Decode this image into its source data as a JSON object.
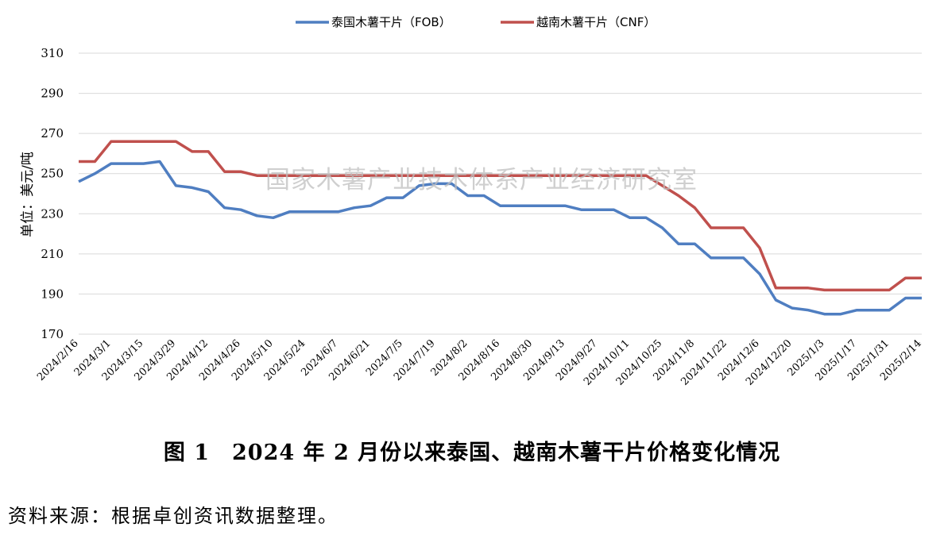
{
  "chart_data": {
    "type": "line",
    "ylabel": "单位：美元/吨",
    "ylim": [
      170,
      310
    ],
    "yticks": [
      170,
      190,
      210,
      230,
      250,
      270,
      290,
      310
    ],
    "x": [
      "2024/2/16",
      "2024/2/23",
      "2024/3/1",
      "2024/3/8",
      "2024/3/15",
      "2024/3/22",
      "2024/3/29",
      "2024/4/5",
      "2024/4/12",
      "2024/4/19",
      "2024/4/26",
      "2024/5/3",
      "2024/5/10",
      "2024/5/17",
      "2024/5/24",
      "2024/5/31",
      "2024/6/7",
      "2024/6/14",
      "2024/6/21",
      "2024/6/28",
      "2024/7/5",
      "2024/7/12",
      "2024/7/19",
      "2024/7/26",
      "2024/8/2",
      "2024/8/9",
      "2024/8/16",
      "2024/8/23",
      "2024/8/30",
      "2024/9/6",
      "2024/9/13",
      "2024/9/20",
      "2024/9/27",
      "2024/10/4",
      "2024/10/11",
      "2024/10/18",
      "2024/10/25",
      "2024/11/1",
      "2024/11/8",
      "2024/11/15",
      "2024/11/22",
      "2024/11/29",
      "2024/12/6",
      "2024/12/13",
      "2024/12/20",
      "2024/12/27",
      "2025/1/3",
      "2025/1/10",
      "2025/1/17",
      "2025/1/24",
      "2025/1/31",
      "2025/2/7",
      "2025/2/14"
    ],
    "xtick_labels": [
      "2024/2/16",
      "2024/3/1",
      "2024/3/15",
      "2024/3/29",
      "2024/4/12",
      "2024/4/26",
      "2024/5/10",
      "2024/5/24",
      "2024/6/7",
      "2024/6/21",
      "2024/7/5",
      "2024/7/19",
      "2024/8/2",
      "2024/8/16",
      "2024/8/30",
      "2024/9/13",
      "2024/9/27",
      "2024/10/11",
      "2024/10/25",
      "2024/11/8",
      "2024/11/22",
      "2024/12/6",
      "2024/12/20",
      "2025/1/3",
      "2025/1/17",
      "2025/1/31",
      "2025/2/14"
    ],
    "series": [
      {
        "name": "泰国木薯干片（FOB）",
        "color": "#4f7ec1",
        "values": [
          246,
          250,
          255,
          255,
          255,
          256,
          244,
          243,
          241,
          233,
          232,
          229,
          228,
          231,
          231,
          231,
          231,
          233,
          234,
          238,
          238,
          244,
          245,
          245,
          239,
          239,
          234,
          234,
          234,
          234,
          234,
          232,
          232,
          232,
          228,
          228,
          223,
          215,
          215,
          208,
          208,
          208,
          200,
          187,
          183,
          182,
          180,
          180,
          182,
          182,
          182,
          188,
          188
        ]
      },
      {
        "name": "越南木薯干片（CNF）",
        "color": "#c0504d",
        "values": [
          256,
          256,
          266,
          266,
          266,
          266,
          266,
          261,
          261,
          251,
          251,
          249,
          249,
          249,
          249,
          249,
          249,
          249,
          249,
          249,
          249,
          249,
          249,
          249,
          249,
          249,
          249,
          249,
          249,
          249,
          249,
          249,
          249,
          249,
          249,
          249,
          244,
          239,
          233,
          223,
          223,
          223,
          213,
          193,
          193,
          193,
          192,
          192,
          192,
          192,
          192,
          198,
          198
        ]
      }
    ],
    "legend_position": "top-center",
    "grid": "horizontal"
  },
  "watermark": "国家木薯产业技术体系产业经济研究室",
  "caption": "图 1　2024 年 2 月份以来泰国、越南木薯干片价格变化情况",
  "source": "资料来源：根据卓创资讯数据整理。"
}
